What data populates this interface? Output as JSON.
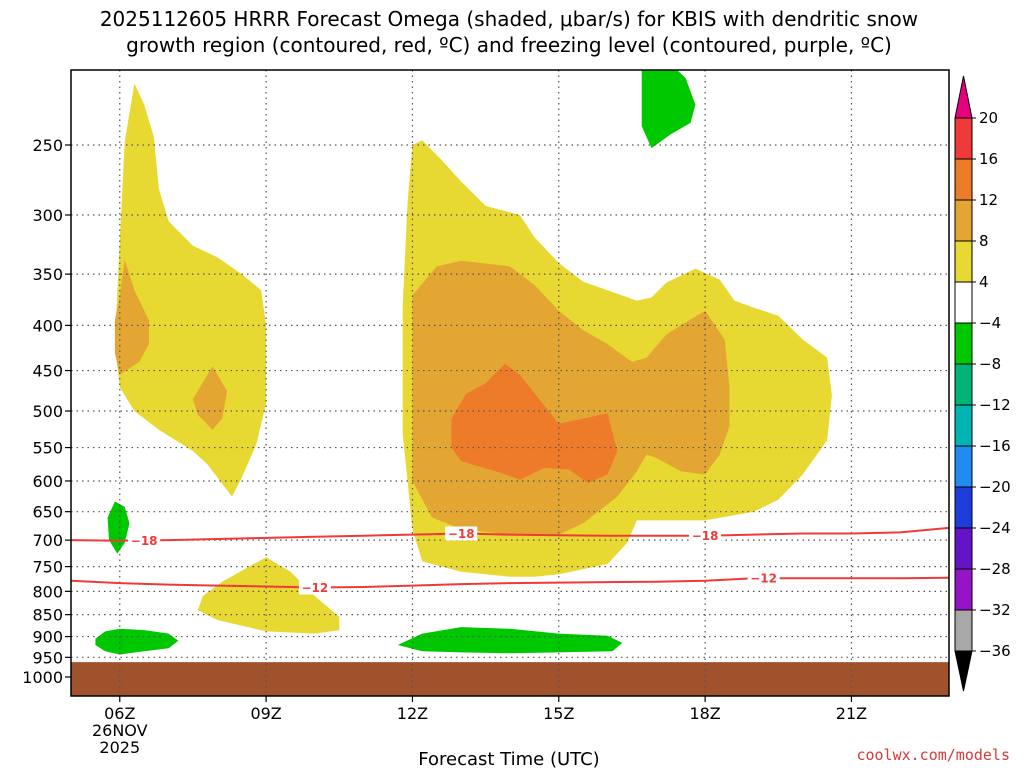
{
  "title": {
    "line1": "2025112605 HRRR Forecast Omega (shaded, μbar/s) for KBIS with dendritic snow",
    "line2": "growth region (contoured, red, ºC) and freezing level (contoured, purple, ºC)"
  },
  "credit": "coolwx.com/models",
  "chart_data": {
    "type": "heatmap",
    "xlabel": "Forecast Time (UTC)",
    "ylabel": "",
    "x_range_hours": [
      5,
      23
    ],
    "y_pressure_range_hPa": [
      1000,
      200
    ],
    "y_scale": "log",
    "grid": true,
    "x_ticks": [
      {
        "hour": 6,
        "label": "06Z",
        "sub1": "26NOV",
        "sub2": "2025"
      },
      {
        "hour": 9,
        "label": "09Z"
      },
      {
        "hour": 12,
        "label": "12Z"
      },
      {
        "hour": 15,
        "label": "15Z"
      },
      {
        "hour": 18,
        "label": "18Z"
      },
      {
        "hour": 21,
        "label": "21Z"
      }
    ],
    "y_ticks": [
      {
        "p": 250,
        "label": "250"
      },
      {
        "p": 300,
        "label": "300"
      },
      {
        "p": 350,
        "label": "350"
      },
      {
        "p": 400,
        "label": "400"
      },
      {
        "p": 450,
        "label": "450"
      },
      {
        "p": 500,
        "label": "500"
      },
      {
        "p": 550,
        "label": "550"
      },
      {
        "p": 600,
        "label": "600"
      },
      {
        "p": 650,
        "label": "650"
      },
      {
        "p": 700,
        "label": "700"
      },
      {
        "p": 750,
        "label": "750"
      },
      {
        "p": 800,
        "label": "800"
      },
      {
        "p": 850,
        "label": "850"
      },
      {
        "p": 900,
        "label": "900"
      },
      {
        "p": 950,
        "label": "950"
      },
      {
        "p": 1000,
        "label": "1000"
      }
    ],
    "colorbar": {
      "levels": [
        {
          "label": "20",
          "color": "#f03a3a"
        },
        {
          "label": "16",
          "color": "#ee7b2a"
        },
        {
          "label": "12",
          "color": "#e4a632"
        },
        {
          "label": "8",
          "color": "#e8d832"
        },
        {
          "label": "4",
          "color": "#ffffff"
        },
        {
          "label": "−4",
          "color": "#00c800"
        },
        {
          "label": "−8",
          "color": "#00b478"
        },
        {
          "label": "−12",
          "color": "#00b4b4"
        },
        {
          "label": "−16",
          "color": "#1e8cf0"
        },
        {
          "label": "−20",
          "color": "#1e3cdc"
        },
        {
          "label": "−24",
          "color": "#6414c8"
        },
        {
          "label": "−28",
          "color": "#9614c8"
        },
        {
          "label": "−32",
          "color": "#a8a8a8"
        },
        {
          "label": "−36",
          "color": null
        }
      ],
      "top_arrow_color": "#e6007e",
      "bottom_arrow_color": "#000000"
    },
    "ground": {
      "color": "#a0522d",
      "top_pressure_hPa": 962
    },
    "omega_regions": [
      {
        "level": "4 to 8",
        "color": "#e8d832",
        "points": [
          [
            5.9,
            420
          ],
          [
            6.0,
            320
          ],
          [
            6.1,
            248
          ],
          [
            6.3,
            213
          ],
          [
            6.5,
            225
          ],
          [
            6.7,
            245
          ],
          [
            6.8,
            280
          ],
          [
            7.0,
            305
          ],
          [
            7.5,
            325
          ],
          [
            8.0,
            335
          ],
          [
            8.5,
            350
          ],
          [
            8.9,
            365
          ],
          [
            9.0,
            400
          ],
          [
            9.0,
            490
          ],
          [
            8.8,
            545
          ],
          [
            8.5,
            595
          ],
          [
            8.3,
            625
          ],
          [
            7.8,
            575
          ],
          [
            7.5,
            555
          ],
          [
            6.8,
            525
          ],
          [
            6.3,
            500
          ],
          [
            6.0,
            470
          ]
        ]
      },
      {
        "level": "4 to 8",
        "color": "#e8d832",
        "points": [
          [
            12.0,
            250
          ],
          [
            12.2,
            247
          ],
          [
            12.6,
            260
          ],
          [
            13.0,
            275
          ],
          [
            13.5,
            293
          ],
          [
            14.2,
            300
          ],
          [
            14.5,
            318
          ],
          [
            15.0,
            340
          ],
          [
            15.5,
            357
          ],
          [
            16.0,
            365
          ],
          [
            16.6,
            375
          ],
          [
            16.9,
            372
          ],
          [
            17.2,
            358
          ],
          [
            17.8,
            345
          ],
          [
            18.3,
            355
          ],
          [
            18.6,
            375
          ],
          [
            19.0,
            382
          ],
          [
            19.5,
            390
          ],
          [
            20.0,
            415
          ],
          [
            20.5,
            435
          ],
          [
            20.6,
            480
          ],
          [
            20.5,
            540
          ],
          [
            20.0,
            590
          ],
          [
            19.5,
            630
          ],
          [
            19.0,
            650
          ],
          [
            18.0,
            665
          ],
          [
            17.0,
            665
          ],
          [
            16.6,
            665
          ],
          [
            16.4,
            705
          ],
          [
            16.0,
            745
          ],
          [
            15.0,
            765
          ],
          [
            14.5,
            770
          ],
          [
            14.0,
            770
          ],
          [
            13.0,
            760
          ],
          [
            12.2,
            740
          ],
          [
            12.0,
            680
          ],
          [
            11.8,
            530
          ],
          [
            11.8,
            380
          ],
          [
            11.9,
            290
          ]
        ]
      },
      {
        "level": "4 to 8",
        "color": "#e8d832",
        "points": [
          [
            7.7,
            810
          ],
          [
            8.1,
            780
          ],
          [
            8.5,
            758
          ],
          [
            9.0,
            732
          ],
          [
            9.5,
            760
          ],
          [
            10.0,
            810
          ],
          [
            10.5,
            855
          ],
          [
            10.5,
            885
          ],
          [
            10.0,
            893
          ],
          [
            9.0,
            888
          ],
          [
            8.0,
            862
          ],
          [
            7.6,
            840
          ]
        ]
      },
      {
        "level": "8 to 12",
        "color": "#e4a632",
        "points": [
          [
            12.0,
            370
          ],
          [
            12.5,
            343
          ],
          [
            13.0,
            338
          ],
          [
            14.0,
            343
          ],
          [
            14.5,
            360
          ],
          [
            15.0,
            385
          ],
          [
            15.5,
            405
          ],
          [
            16.0,
            420
          ],
          [
            16.5,
            440
          ],
          [
            16.8,
            435
          ],
          [
            17.2,
            410
          ],
          [
            17.5,
            400
          ],
          [
            18.0,
            385
          ],
          [
            18.4,
            415
          ],
          [
            18.5,
            470
          ],
          [
            18.5,
            520
          ],
          [
            18.3,
            560
          ],
          [
            18.0,
            590
          ],
          [
            17.5,
            585
          ],
          [
            17.0,
            565
          ],
          [
            16.8,
            560
          ],
          [
            16.6,
            585
          ],
          [
            16.2,
            625
          ],
          [
            15.5,
            670
          ],
          [
            15.0,
            690
          ],
          [
            14.0,
            690
          ],
          [
            13.0,
            680
          ],
          [
            12.4,
            660
          ],
          [
            12.0,
            600
          ],
          [
            12.0,
            460
          ]
        ]
      },
      {
        "level": "8 to 12",
        "color": "#e4a632",
        "points": [
          [
            5.9,
            395
          ],
          [
            6.0,
            370
          ],
          [
            6.1,
            337
          ],
          [
            6.3,
            365
          ],
          [
            6.6,
            395
          ],
          [
            6.6,
            420
          ],
          [
            6.4,
            440
          ],
          [
            6.0,
            455
          ],
          [
            5.9,
            430
          ]
        ]
      },
      {
        "level": "8 to 12",
        "color": "#e4a632",
        "points": [
          [
            7.5,
            485
          ],
          [
            7.9,
            445
          ],
          [
            8.2,
            475
          ],
          [
            8.1,
            510
          ],
          [
            7.9,
            525
          ],
          [
            7.6,
            505
          ]
        ]
      },
      {
        "level": "12 to 16",
        "color": "#ee7b2a",
        "points": [
          [
            12.8,
            510
          ],
          [
            13.1,
            478
          ],
          [
            13.5,
            465
          ],
          [
            13.9,
            442
          ],
          [
            14.2,
            455
          ],
          [
            14.6,
            485
          ],
          [
            15.0,
            517
          ],
          [
            15.5,
            510
          ],
          [
            16.0,
            503
          ],
          [
            16.2,
            555
          ],
          [
            16.0,
            590
          ],
          [
            15.6,
            603
          ],
          [
            15.2,
            582
          ],
          [
            14.7,
            580
          ],
          [
            14.2,
            598
          ],
          [
            13.8,
            587
          ],
          [
            13.0,
            570
          ],
          [
            12.8,
            550
          ]
        ]
      },
      {
        "level": "-8 to -4",
        "color": "#00c800",
        "points": [
          [
            16.7,
            205
          ],
          [
            16.8,
            198
          ],
          [
            17.2,
            200
          ],
          [
            17.6,
            210
          ],
          [
            17.8,
            225
          ],
          [
            17.7,
            236
          ],
          [
            17.3,
            243
          ],
          [
            16.9,
            252
          ],
          [
            16.7,
            238
          ]
        ]
      },
      {
        "level": "-8 to -4",
        "color": "#00c800",
        "points": [
          [
            5.75,
            660
          ],
          [
            5.9,
            633
          ],
          [
            6.1,
            642
          ],
          [
            6.2,
            670
          ],
          [
            6.1,
            705
          ],
          [
            5.95,
            725
          ],
          [
            5.78,
            700
          ]
        ]
      },
      {
        "level": "-8 to -4",
        "color": "#00c800",
        "points": [
          [
            5.5,
            905
          ],
          [
            5.7,
            888
          ],
          [
            6.0,
            882
          ],
          [
            6.5,
            885
          ],
          [
            7.0,
            893
          ],
          [
            7.2,
            910
          ],
          [
            7.0,
            928
          ],
          [
            6.5,
            935
          ],
          [
            6.0,
            943
          ],
          [
            5.7,
            935
          ],
          [
            5.5,
            920
          ]
        ]
      },
      {
        "level": "-8 to -4",
        "color": "#00c800",
        "points": [
          [
            11.7,
            920
          ],
          [
            12.2,
            893
          ],
          [
            13.0,
            878
          ],
          [
            14.0,
            882
          ],
          [
            15.0,
            893
          ],
          [
            16.0,
            898
          ],
          [
            16.3,
            915
          ],
          [
            16.1,
            935
          ],
          [
            15.0,
            938
          ],
          [
            14.0,
            940
          ],
          [
            13.0,
            938
          ],
          [
            12.2,
            935
          ]
        ]
      }
    ],
    "dendritic_contours": [
      {
        "label": "−18",
        "color": "#f03a3a",
        "points": [
          [
            5,
            700
          ],
          [
            6,
            701
          ],
          [
            7,
            700
          ],
          [
            8,
            698
          ],
          [
            9,
            696
          ],
          [
            10,
            694
          ],
          [
            11,
            692
          ],
          [
            12,
            690
          ],
          [
            13,
            688
          ],
          [
            14,
            690
          ],
          [
            15,
            691
          ],
          [
            16,
            692
          ],
          [
            17,
            692
          ],
          [
            18,
            692
          ],
          [
            19,
            690
          ],
          [
            20,
            688
          ],
          [
            21,
            688
          ],
          [
            22,
            686
          ],
          [
            23,
            678
          ]
        ],
        "label_positions": [
          6.5,
          13.0,
          18.0
        ]
      },
      {
        "label": "−12",
        "color": "#f03a3a",
        "points": [
          [
            5,
            778
          ],
          [
            6,
            783
          ],
          [
            7,
            786
          ],
          [
            8,
            788
          ],
          [
            9,
            790
          ],
          [
            10,
            792
          ],
          [
            11,
            791
          ],
          [
            12,
            788
          ],
          [
            13,
            785
          ],
          [
            14,
            783
          ],
          [
            15,
            782
          ],
          [
            16,
            781
          ],
          [
            17,
            780
          ],
          [
            18,
            778
          ],
          [
            19,
            773
          ],
          [
            20,
            773
          ],
          [
            21,
            773
          ],
          [
            22,
            773
          ],
          [
            23,
            772
          ]
        ],
        "label_positions": [
          10.0,
          19.2
        ]
      }
    ]
  }
}
